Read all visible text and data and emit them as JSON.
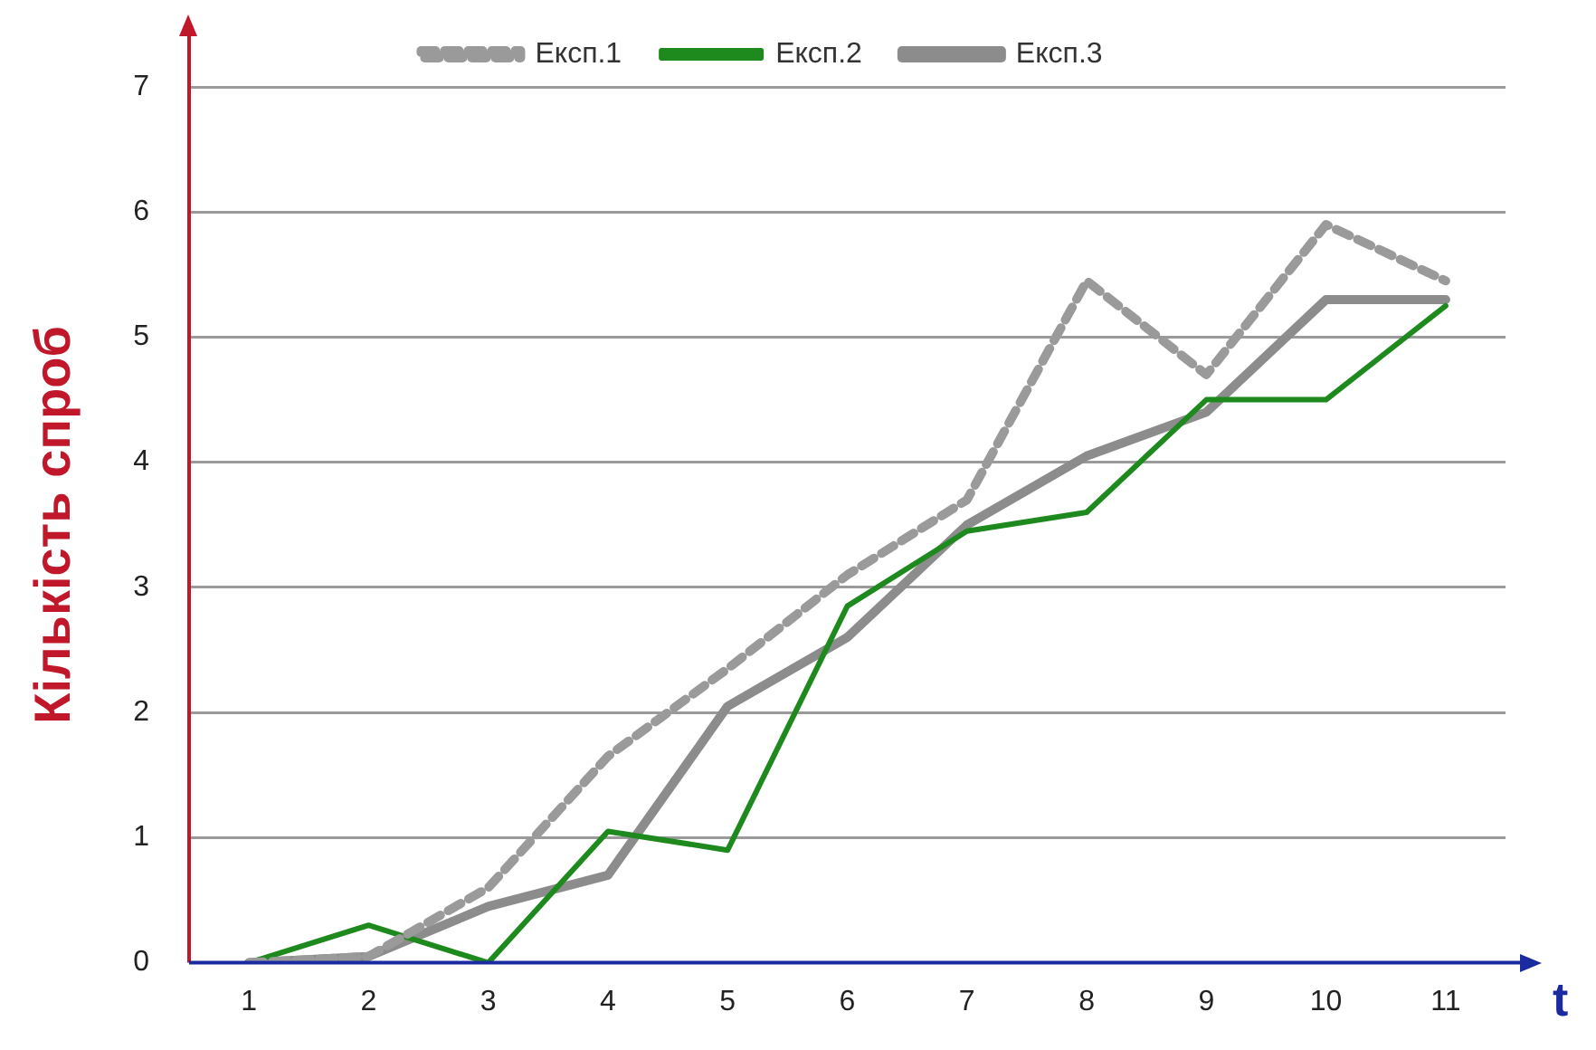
{
  "chart_data": {
    "type": "line",
    "ylabel": "Кількість спроб",
    "xlabel": "t",
    "categories": [
      "1",
      "2",
      "3",
      "4",
      "5",
      "6",
      "7",
      "8",
      "9",
      "10",
      "11"
    ],
    "series": [
      {
        "name": "Експ.1",
        "color": "#9a9a9a",
        "line_style": "dashed",
        "values": [
          0,
          0.05,
          0.6,
          1.65,
          2.35,
          3.1,
          3.7,
          5.45,
          4.7,
          5.9,
          5.45
        ]
      },
      {
        "name": "Експ.2",
        "color": "#1e8a1e",
        "line_style": "solid",
        "values": [
          0,
          0.3,
          0,
          1.05,
          0.9,
          2.85,
          3.45,
          3.6,
          4.5,
          4.5,
          5.25
        ]
      },
      {
        "name": "Експ.3",
        "color": "#8c8c8c",
        "line_style": "solid",
        "values": [
          0,
          0.05,
          0.45,
          0.7,
          2.05,
          2.6,
          3.5,
          4.05,
          4.4,
          5.3,
          5.3
        ]
      }
    ],
    "ylim": [
      0,
      7
    ],
    "yticks": [
      0,
      1,
      2,
      3,
      4,
      5,
      6,
      7
    ],
    "grid": "y",
    "legend": "top",
    "marker": "none"
  }
}
